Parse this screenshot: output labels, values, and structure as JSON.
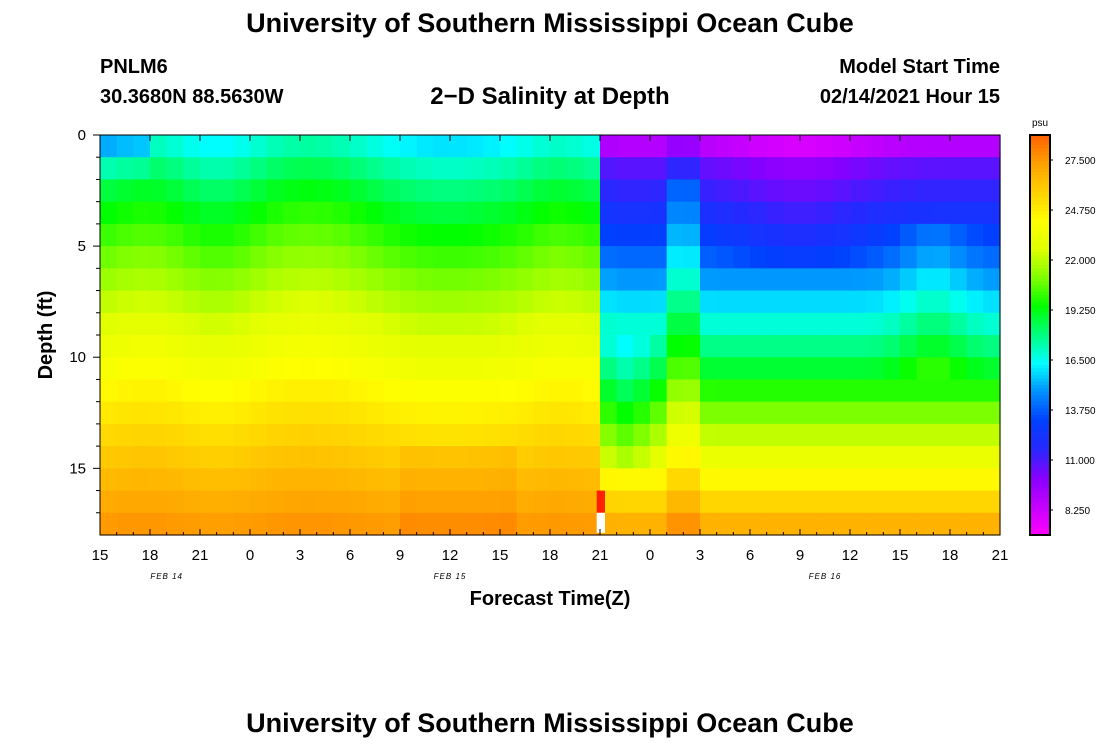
{
  "header": {
    "title": "University of Southern Mississippi Ocean Cube",
    "footer_title": "University of Southern Mississippi Ocean Cube",
    "station_id": "PNLM6",
    "coordinates": "30.3680N 88.5630W",
    "chart_title": "2−D Salinity at Depth",
    "model_start_label": "Model Start Time",
    "model_start_value": "02/14/2021 Hour 15"
  },
  "chart_data": {
    "type": "heatmap",
    "title": "2−D Salinity at Depth",
    "xlabel": "Forecast Time(Z)",
    "ylabel": "Depth (ft)",
    "x_range_hours": [
      0,
      54
    ],
    "y_range_ft": [
      0,
      18
    ],
    "x_ticks": [
      {
        "hour": 0,
        "label": "15"
      },
      {
        "hour": 3,
        "label": "18"
      },
      {
        "hour": 6,
        "label": "21"
      },
      {
        "hour": 9,
        "label": "0"
      },
      {
        "hour": 12,
        "label": "3"
      },
      {
        "hour": 15,
        "label": "6"
      },
      {
        "hour": 18,
        "label": "9"
      },
      {
        "hour": 21,
        "label": "12"
      },
      {
        "hour": 24,
        "label": "15"
      },
      {
        "hour": 27,
        "label": "18"
      },
      {
        "hour": 30,
        "label": "21"
      },
      {
        "hour": 33,
        "label": "0"
      },
      {
        "hour": 36,
        "label": "3"
      },
      {
        "hour": 39,
        "label": "6"
      },
      {
        "hour": 42,
        "label": "9"
      },
      {
        "hour": 45,
        "label": "12"
      },
      {
        "hour": 48,
        "label": "15"
      },
      {
        "hour": 51,
        "label": "18"
      },
      {
        "hour": 54,
        "label": "21"
      }
    ],
    "y_ticks": [
      {
        "depth": 0,
        "label": "0"
      },
      {
        "depth": 5,
        "label": "5"
      },
      {
        "depth": 10,
        "label": "10"
      },
      {
        "depth": 15,
        "label": "15"
      }
    ],
    "date_labels": [
      {
        "hour": 4,
        "label": "FEB 14"
      },
      {
        "hour": 21,
        "label": "FEB 15"
      },
      {
        "hour": 43.5,
        "label": "FEB 16"
      }
    ],
    "colorbar": {
      "unit": "psu",
      "min": 6.875,
      "max": 28.875,
      "labels": [
        "27.500",
        "24.750",
        "22.000",
        "19.250",
        "16.500",
        "13.750",
        "11.000",
        "8.250"
      ],
      "label_values": [
        27.5,
        24.75,
        22.0,
        19.25,
        16.5,
        13.75,
        11.0,
        8.25
      ],
      "colors": [
        "#ff00ff",
        "#c400ff",
        "#8800ff",
        "#2828ff",
        "#0040ff",
        "#0090ff",
        "#00ffff",
        "#00ff80",
        "#00ff00",
        "#80ff00",
        "#e0ff00",
        "#ffff00",
        "#ffd000",
        "#ffa000",
        "#ff6000"
      ]
    },
    "salinity_profile_psu": {
      "depths_ft": [
        0,
        2,
        4,
        6,
        8,
        10,
        12,
        14,
        16,
        18
      ],
      "typical_profile": [
        14.5,
        15.5,
        17.5,
        19.5,
        21.5,
        23.0,
        25.0,
        26.5,
        27.3,
        27.5
      ],
      "note_hours": [
        30,
        35
      ]
    }
  }
}
